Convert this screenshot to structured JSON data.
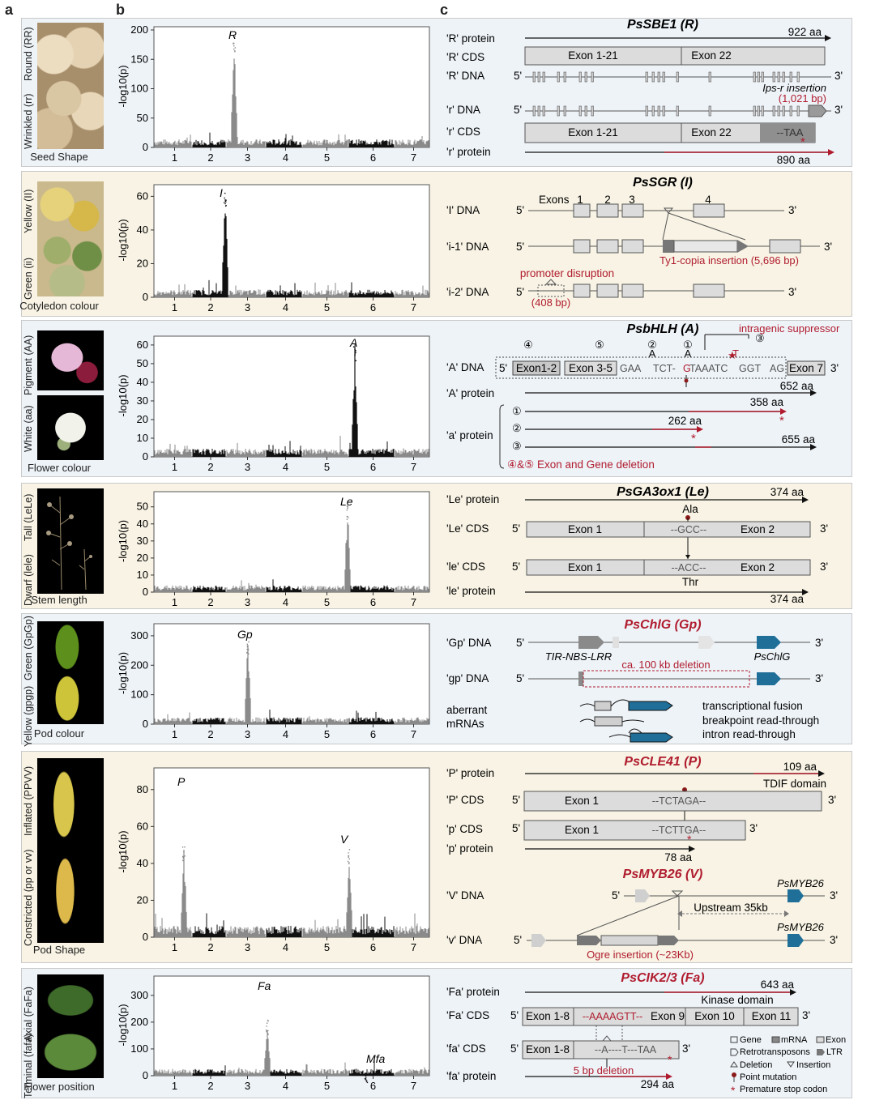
{
  "panel_letters": {
    "a": "a",
    "b": "b",
    "c": "c"
  },
  "colors": {
    "blue_bg": "#eef3f8",
    "tan_bg": "#f8f3e4",
    "dark_red": "#b01c2e",
    "teal": "#1f6f98",
    "manhattan_black": "#111111",
    "manhattan_grey": "#8a8a8a"
  },
  "y_axis_label": "-log10(p)",
  "chromosomes": [
    "1",
    "2",
    "3",
    "4",
    "5",
    "6",
    "7"
  ],
  "rows": [
    {
      "trait": "Seed Shape",
      "upper": "Round (RR)",
      "lower": "Wrinkled (rr)",
      "yticks": [
        "0",
        "50",
        "100",
        "150",
        "200"
      ],
      "peaks": [
        "R"
      ]
    },
    {
      "trait": "Cotyledon colour",
      "upper": "Yellow (II)",
      "lower": "Green (ii)",
      "yticks": [
        "0",
        "20",
        "40",
        "60"
      ],
      "peaks": [
        "I"
      ]
    },
    {
      "trait": "Flower colour",
      "upper": "Pigment (AA)",
      "lower": "White (aa)",
      "yticks": [
        "0",
        "10",
        "20",
        "30",
        "40",
        "50",
        "60"
      ],
      "peaks": [
        "A"
      ]
    },
    {
      "trait": "Stem length",
      "upper": "Tall (LeLe)",
      "lower": "Dwarf (lele)",
      "yticks": [
        "0",
        "10",
        "20",
        "30",
        "40",
        "50"
      ],
      "peaks": [
        "Le"
      ]
    },
    {
      "trait": "Pod colour",
      "upper": "Green (GpGp)",
      "lower": "Yellow (gpgp)",
      "yticks": [
        "0",
        "100",
        "200",
        "300"
      ],
      "peaks": [
        "Gp"
      ]
    },
    {
      "trait": "Pod Shape",
      "upper": "Inflated (PPVV)",
      "lower": "Constricted (pp or vv)",
      "yticks": [
        "0",
        "20",
        "40",
        "60",
        "80"
      ],
      "peaks": [
        "P",
        "V"
      ]
    },
    {
      "trait": "Flower position",
      "upper": "Axial (FaFa)",
      "lower": "Terminal (fafa)",
      "yticks": [
        "0",
        "100",
        "200",
        "300"
      ],
      "peaks": [
        "Fa",
        "Mfa"
      ]
    }
  ],
  "genes": {
    "r": {
      "title": "PsSBE1 (R)",
      "labels": [
        "'R' protein",
        "'R' CDS",
        "'R' DNA",
        "'r' DNA",
        "'r' CDS",
        "'r' protein"
      ],
      "exon_a": "Exon 1-21",
      "exon_b": "Exon 22",
      "len_R": "922 aa",
      "len_r": "890 aa",
      "insertion": "Ips-r insertion",
      "insertion_size": "(1,021 bp)",
      "taa": "--TAA"
    },
    "i": {
      "title": "PsSGR (I)",
      "labels": [
        "'I' DNA",
        "'i-1' DNA",
        "'i-2' DNA"
      ],
      "exons": "Exons",
      "exon_nums": [
        "1",
        "2",
        "3",
        "4"
      ],
      "ty1": "Ty1-copia insertion (5,696 bp)",
      "promoter": "promoter disruption",
      "promoter_size": "(408 bp)"
    },
    "a": {
      "title": "PsbHLH (A)",
      "suppressor": "intragenic suppressor",
      "labels": [
        "'A' DNA",
        "'A' protein",
        "'a' protein"
      ],
      "boxes": [
        "Exon1-2",
        "Exon 3-5",
        "Exon 7"
      ],
      "seq1": "GAA",
      "seq2": "TCT-",
      "seq3": "G",
      "seq4": "TAAATC",
      "seq5": "GGT",
      "seq6": "AG",
      "circles": [
        "①",
        "②",
        "③",
        "④",
        "⑤"
      ],
      "A_letters": [
        "A",
        "A"
      ],
      "T_letter": "T",
      "lengths": [
        "652 aa",
        "358 aa",
        "262 aa",
        "655 aa"
      ],
      "deletion": "④&⑤ Exon  and Gene deletion"
    },
    "le": {
      "title": "PsGA3ox1 (Le)",
      "labels": [
        "'Le' protein",
        "'Le' CDS",
        "'le' CDS",
        "'le' protein"
      ],
      "len": "374 aa",
      "ala": "Ala",
      "thr": "Thr",
      "exon1": "Exon 1",
      "exon2": "Exon 2",
      "gcc": "--GCC--",
      "acc": "--ACC--"
    },
    "gp": {
      "title": "PsChlG (Gp)",
      "labels": [
        "'Gp' DNA",
        "'gp' DNA",
        "aberrant",
        "mRNAs"
      ],
      "tir": "TIR-NBS-LRR",
      "chlg": "PsChlG",
      "deletion": "ca. 100 kb deletion",
      "mrna": [
        "transcriptional fusion",
        "breakpoint read-through",
        "intron read-through"
      ]
    },
    "p": {
      "title": "PsCLE41 (P)",
      "labels": [
        "'P' protein",
        "'P' CDS",
        "'p' CDS",
        "'p' protein"
      ],
      "len_P": "109 aa",
      "tdif": "TDIF domain",
      "exon": "Exon 1",
      "seq_P": "--TCTAGA--",
      "seq_p": "--TCTTGA--",
      "len_p": "78 aa"
    },
    "v": {
      "title": "PsMYB26 (V)",
      "labels": [
        "'V' DNA",
        "'v' DNA"
      ],
      "gene": "PsMYB26",
      "upstream": "Upstream 35kb",
      "ogre": "Ogre insertion (~23Kb)"
    },
    "fa": {
      "title": "PsCIK2/3 (Fa)",
      "labels": [
        "'Fa' protein",
        "'Fa' CDS",
        "'fa' CDS",
        "'fa' protein"
      ],
      "len_Fa": "643 aa",
      "kinase": "Kinase domain",
      "exons": [
        "Exon 1-8",
        "Exon 9",
        "Exon 10",
        "Exon 11"
      ],
      "seq_Fa": "--AAAAGTT--",
      "seq_fa": "--A----T---TAA",
      "del": "5 bp deletion",
      "len_fa": "294 aa"
    }
  },
  "strand": {
    "five": "5'",
    "three": "3'"
  },
  "legend": {
    "items": [
      "Gene",
      "mRNA",
      "Exon",
      "Retrotransposons",
      "LTR",
      "Deletion",
      "Insertion",
      "Point mutation",
      "Premature stop codon"
    ]
  }
}
